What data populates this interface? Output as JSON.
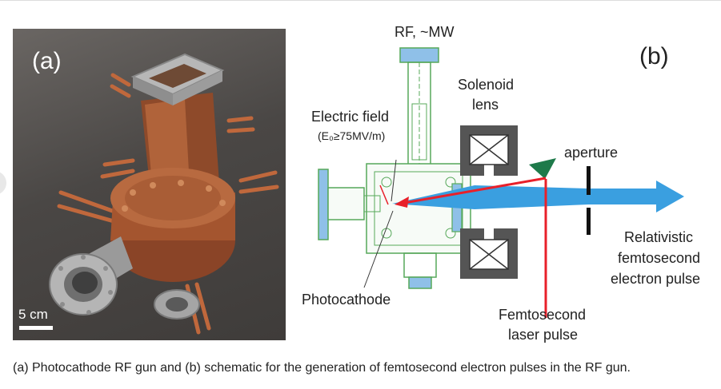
{
  "figure": {
    "panel_a": {
      "label": "(a)",
      "scale_label": "5 cm"
    },
    "panel_b": {
      "label": "(b)",
      "labels": {
        "rf": "RF, ~MW",
        "solenoid_line1": "Solenoid",
        "solenoid_line2": "lens",
        "electric_field": "Electric field",
        "field_value": "(E₀≥75MV/m)",
        "aperture": "aperture",
        "relativistic_line1": "Relativistic",
        "relativistic_line2": "femtosecond",
        "relativistic_line3": "electron pulse",
        "photocathode": "Photocathode",
        "femtosecond_line1": "Femtosecond",
        "femtosecond_line2": "laser pulse"
      }
    },
    "caption": "(a) Photocathode RF gun and (b) schematic for the generation of femtosecond electron pulses in the RF gun.",
    "colors": {
      "photo_background": "#4a4745",
      "copper": "#a85a33",
      "steel": "#a9a9a9",
      "electron_beam": "#3a9fe0",
      "laser": "#e8202a",
      "solenoid": "#555555",
      "mirror": "#1e7a4a",
      "cavity_outline": "#57a85a",
      "cavity_fill": "#8fc0e8"
    }
  }
}
